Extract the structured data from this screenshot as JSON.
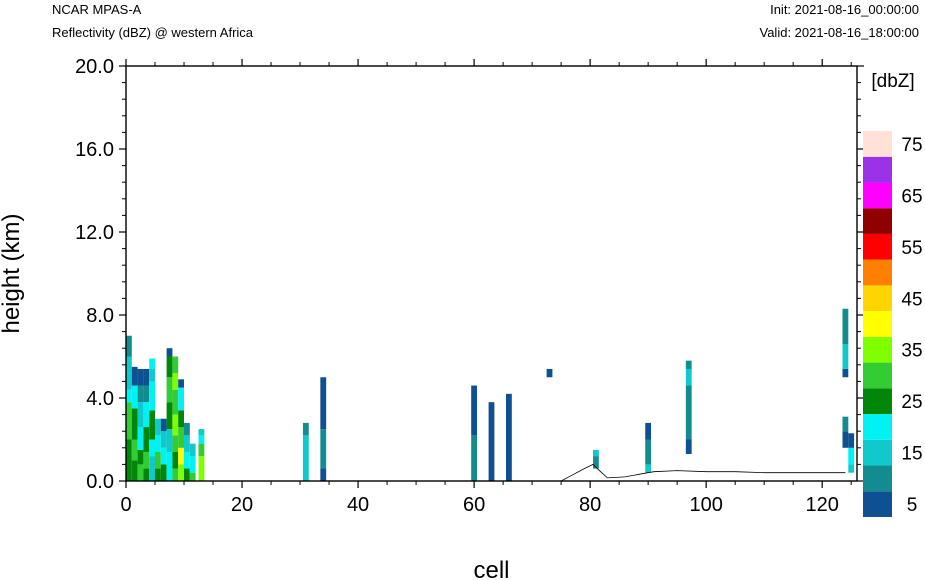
{
  "header": {
    "title_left": "NCAR MPAS-A",
    "subtitle_left": "Reflectivity (dBZ) @ western Africa",
    "init_label": "Init: 2021-08-16_00:00:00",
    "valid_label": "Valid: 2021-08-16_18:00:00"
  },
  "chart_data": {
    "type": "heatmap",
    "title": "Reflectivity (dBZ) @ western Africa",
    "xlabel": "cell",
    "ylabel": "height (km)",
    "xlim": [
      0,
      126
    ],
    "ylim": [
      0,
      20
    ],
    "x_ticks": [
      0,
      20,
      40,
      60,
      80,
      100,
      120
    ],
    "x_tick_labels": [
      "0",
      "20",
      "40",
      "60",
      "80",
      "100",
      "120"
    ],
    "y_ticks": [
      0,
      4,
      8,
      12,
      16,
      20
    ],
    "y_tick_labels": [
      "0.0",
      "4.0",
      "8.0",
      "12.0",
      "16.0",
      "20.0"
    ],
    "colorbar": {
      "title": "[dbZ]",
      "levels": [
        5,
        10,
        15,
        20,
        25,
        30,
        35,
        40,
        45,
        50,
        55,
        60,
        65,
        70,
        75
      ],
      "tick_labels": [
        "5",
        "15",
        "25",
        "35",
        "45",
        "55",
        "65",
        "75"
      ],
      "colors": [
        "#0d5192",
        "#128c8e",
        "#10c9cc",
        "#00f2f2",
        "#00870a",
        "#33cc33",
        "#80ff00",
        "#ffff00",
        "#ffd500",
        "#ff8000",
        "#ff0000",
        "#910000",
        "#ff00ff",
        "#9a32e8",
        "#ffe1d8"
      ]
    },
    "terrain": [
      [
        0,
        0
      ],
      [
        75,
        0
      ],
      [
        77,
        0.3
      ],
      [
        79,
        0.6
      ],
      [
        80.5,
        0.8
      ],
      [
        82,
        0.4
      ],
      [
        83,
        0.15
      ],
      [
        86,
        0.2
      ],
      [
        89,
        0.35
      ],
      [
        91,
        0.45
      ],
      [
        95,
        0.5
      ],
      [
        100,
        0.45
      ],
      [
        105,
        0.45
      ],
      [
        110,
        0.4
      ],
      [
        115,
        0.4
      ],
      [
        120,
        0.4
      ],
      [
        124,
        0.4
      ]
    ],
    "columns": [
      {
        "x": 0.5,
        "cells": [
          [
            0.0,
            2.0,
            25
          ],
          [
            2.0,
            3.8,
            30
          ],
          [
            3.8,
            4.4,
            20
          ],
          [
            4.4,
            5.2,
            15
          ],
          [
            5.2,
            6.0,
            15
          ],
          [
            6.0,
            7.0,
            10
          ]
        ]
      },
      {
        "x": 1.5,
        "cells": [
          [
            0.0,
            1.0,
            25
          ],
          [
            1.0,
            2.0,
            30
          ],
          [
            2.0,
            3.5,
            25
          ],
          [
            3.5,
            4.6,
            20
          ],
          [
            4.6,
            5.5,
            5
          ]
        ]
      },
      {
        "x": 2.5,
        "cells": [
          [
            0.0,
            0.8,
            30
          ],
          [
            0.8,
            1.5,
            25
          ],
          [
            1.5,
            2.6,
            20
          ],
          [
            2.6,
            3.8,
            15
          ],
          [
            3.8,
            4.6,
            10
          ],
          [
            4.6,
            5.4,
            5
          ]
        ]
      },
      {
        "x": 3.5,
        "cells": [
          [
            0.0,
            0.6,
            25
          ],
          [
            0.6,
            1.4,
            30
          ],
          [
            1.4,
            2.6,
            25
          ],
          [
            2.6,
            3.8,
            20
          ],
          [
            3.8,
            4.6,
            10
          ],
          [
            4.6,
            5.4,
            5
          ]
        ]
      },
      {
        "x": 4.5,
        "cells": [
          [
            0.0,
            1.2,
            15
          ],
          [
            1.2,
            2.0,
            20
          ],
          [
            2.0,
            3.4,
            25
          ],
          [
            3.4,
            4.8,
            20
          ],
          [
            4.8,
            5.4,
            15
          ],
          [
            5.4,
            5.9,
            20
          ]
        ]
      },
      {
        "x": 5.5,
        "cells": [
          [
            0.0,
            0.6,
            25
          ],
          [
            0.6,
            1.4,
            30
          ],
          [
            1.4,
            2.2,
            20
          ],
          [
            2.2,
            3.0,
            15
          ]
        ]
      },
      {
        "x": 6.5,
        "cells": [
          [
            0.0,
            0.8,
            25
          ],
          [
            0.8,
            1.6,
            20
          ],
          [
            1.6,
            2.4,
            15
          ],
          [
            2.4,
            3.0,
            5
          ]
        ]
      },
      {
        "x": 7.5,
        "cells": [
          [
            0.0,
            1.4,
            20
          ],
          [
            1.4,
            2.5,
            15
          ],
          [
            2.5,
            3.8,
            25
          ],
          [
            3.8,
            5.0,
            30
          ],
          [
            5.0,
            6.0,
            25
          ],
          [
            6.0,
            6.4,
            5
          ]
        ]
      },
      {
        "x": 8.5,
        "cells": [
          [
            0.0,
            0.6,
            30
          ],
          [
            0.6,
            1.4,
            25
          ],
          [
            1.4,
            2.2,
            30
          ],
          [
            2.2,
            3.2,
            35
          ],
          [
            3.2,
            4.4,
            30
          ],
          [
            4.4,
            5.2,
            35
          ],
          [
            5.2,
            6.0,
            30
          ]
        ]
      },
      {
        "x": 9.5,
        "cells": [
          [
            0.0,
            0.8,
            35
          ],
          [
            0.8,
            1.6,
            40
          ],
          [
            1.6,
            2.6,
            30
          ],
          [
            2.6,
            3.4,
            25
          ],
          [
            3.4,
            4.5,
            20
          ],
          [
            4.5,
            4.9,
            5
          ]
        ]
      },
      {
        "x": 10.5,
        "cells": [
          [
            0.0,
            0.6,
            25
          ],
          [
            0.6,
            1.4,
            20
          ],
          [
            1.4,
            2.2,
            15
          ],
          [
            2.2,
            2.8,
            10
          ]
        ]
      },
      {
        "x": 11.5,
        "cells": [
          [
            0.0,
            0.4,
            30
          ],
          [
            0.4,
            1.2,
            20
          ],
          [
            1.2,
            1.8,
            15
          ]
        ]
      },
      {
        "x": 13.0,
        "cells": [
          [
            0.0,
            1.2,
            35
          ],
          [
            1.2,
            1.8,
            30
          ],
          [
            1.8,
            2.2,
            20
          ],
          [
            2.2,
            2.5,
            15
          ]
        ]
      },
      {
        "x": 31.0,
        "cells": [
          [
            0.0,
            2.2,
            15
          ],
          [
            2.2,
            2.8,
            10
          ]
        ]
      },
      {
        "x": 34.0,
        "cells": [
          [
            0.0,
            0.6,
            5
          ],
          [
            0.6,
            2.5,
            10
          ],
          [
            2.5,
            5.0,
            5
          ]
        ]
      },
      {
        "x": 60.0,
        "cells": [
          [
            0.0,
            2.2,
            10
          ],
          [
            2.2,
            4.6,
            5
          ]
        ]
      },
      {
        "x": 63.0,
        "cells": [
          [
            0.0,
            3.8,
            5
          ]
        ]
      },
      {
        "x": 66.0,
        "cells": [
          [
            0.0,
            4.2,
            5
          ]
        ]
      },
      {
        "x": 73.0,
        "cells": [
          [
            5.0,
            5.4,
            5
          ]
        ]
      },
      {
        "x": 81.0,
        "cells": [
          [
            0.6,
            1.2,
            10
          ],
          [
            1.2,
            1.5,
            15
          ]
        ]
      },
      {
        "x": 90.0,
        "cells": [
          [
            0.4,
            0.8,
            15
          ],
          [
            0.8,
            2.0,
            10
          ],
          [
            2.0,
            2.8,
            5
          ]
        ]
      },
      {
        "x": 97.0,
        "cells": [
          [
            1.3,
            2.0,
            5
          ],
          [
            2.0,
            4.6,
            10
          ],
          [
            4.6,
            5.4,
            15
          ],
          [
            5.4,
            5.8,
            10
          ]
        ]
      },
      {
        "x": 124.0,
        "cells": [
          [
            1.6,
            2.4,
            5
          ],
          [
            2.4,
            3.1,
            10
          ],
          [
            5.0,
            5.4,
            5
          ],
          [
            5.4,
            6.6,
            15
          ],
          [
            6.6,
            8.3,
            10
          ]
        ]
      },
      {
        "x": 125.0,
        "cells": [
          [
            0.4,
            0.8,
            15
          ],
          [
            0.8,
            1.6,
            20
          ],
          [
            1.6,
            2.3,
            5
          ]
        ]
      }
    ]
  }
}
